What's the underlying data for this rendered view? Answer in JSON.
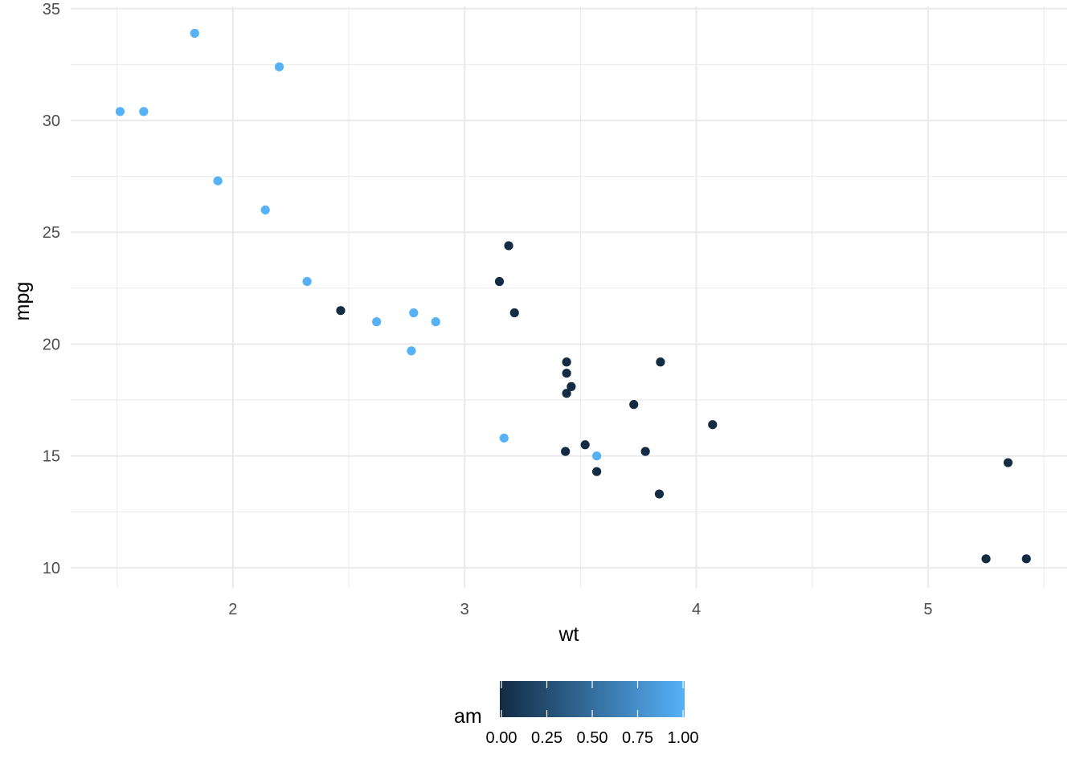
{
  "chart_data": {
    "type": "scatter",
    "title": "",
    "xlabel": "wt",
    "ylabel": "mpg",
    "xlim": [
      1.3,
      5.6
    ],
    "ylim": [
      9.1,
      35.1
    ],
    "x_ticks": [
      2,
      3,
      4,
      5
    ],
    "y_ticks": [
      10,
      15,
      20,
      25,
      30,
      35
    ],
    "grid": true,
    "legend": {
      "title": "am",
      "type": "colorbar",
      "position": "bottom",
      "range": [
        0,
        1
      ],
      "ticks": [
        "0.00",
        "0.25",
        "0.50",
        "0.75",
        "1.00"
      ],
      "low_color": "#132B43",
      "high_color": "#56B1F7"
    },
    "points": [
      {
        "x": 2.62,
        "y": 21.0,
        "am": 1
      },
      {
        "x": 2.875,
        "y": 21.0,
        "am": 1
      },
      {
        "x": 2.32,
        "y": 22.8,
        "am": 1
      },
      {
        "x": 3.215,
        "y": 21.4,
        "am": 0
      },
      {
        "x": 3.44,
        "y": 18.7,
        "am": 0
      },
      {
        "x": 3.46,
        "y": 18.1,
        "am": 0
      },
      {
        "x": 3.57,
        "y": 14.3,
        "am": 0
      },
      {
        "x": 3.19,
        "y": 24.4,
        "am": 0
      },
      {
        "x": 3.15,
        "y": 22.8,
        "am": 0
      },
      {
        "x": 3.44,
        "y": 19.2,
        "am": 0
      },
      {
        "x": 3.44,
        "y": 17.8,
        "am": 0
      },
      {
        "x": 4.07,
        "y": 16.4,
        "am": 0
      },
      {
        "x": 3.73,
        "y": 17.3,
        "am": 0
      },
      {
        "x": 3.78,
        "y": 15.2,
        "am": 0
      },
      {
        "x": 5.25,
        "y": 10.4,
        "am": 0
      },
      {
        "x": 5.424,
        "y": 10.4,
        "am": 0
      },
      {
        "x": 5.345,
        "y": 14.7,
        "am": 0
      },
      {
        "x": 2.2,
        "y": 32.4,
        "am": 1
      },
      {
        "x": 1.615,
        "y": 30.4,
        "am": 1
      },
      {
        "x": 1.835,
        "y": 33.9,
        "am": 1
      },
      {
        "x": 2.465,
        "y": 21.5,
        "am": 0
      },
      {
        "x": 3.52,
        "y": 15.5,
        "am": 0
      },
      {
        "x": 3.435,
        "y": 15.2,
        "am": 0
      },
      {
        "x": 3.84,
        "y": 13.3,
        "am": 0
      },
      {
        "x": 3.845,
        "y": 19.2,
        "am": 0
      },
      {
        "x": 1.935,
        "y": 27.3,
        "am": 1
      },
      {
        "x": 2.14,
        "y": 26.0,
        "am": 1
      },
      {
        "x": 1.513,
        "y": 30.4,
        "am": 1
      },
      {
        "x": 3.17,
        "y": 15.8,
        "am": 1
      },
      {
        "x": 2.77,
        "y": 19.7,
        "am": 1
      },
      {
        "x": 3.57,
        "y": 15.0,
        "am": 1
      },
      {
        "x": 2.78,
        "y": 21.4,
        "am": 1
      }
    ]
  }
}
